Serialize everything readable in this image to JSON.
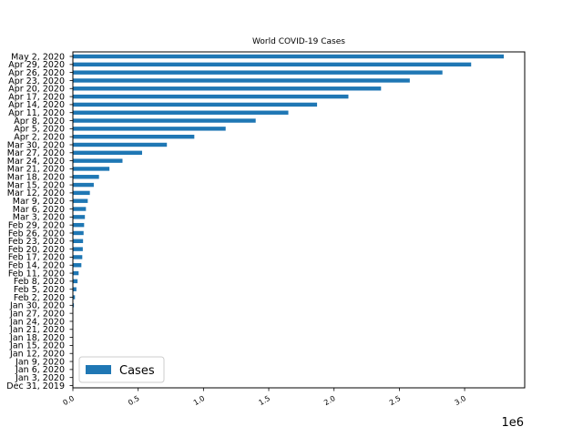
{
  "chart_data": {
    "type": "bar",
    "orientation": "horizontal",
    "title": "World COVID-19 Cases",
    "xlabel": "",
    "ylabel": "",
    "x_offset_label": "1e6",
    "xlim": [
      0,
      3460000
    ],
    "x_ticks": [
      0,
      500000,
      1000000,
      1500000,
      2000000,
      2500000,
      3000000
    ],
    "x_tick_labels": [
      "0.0",
      "0.5",
      "1.0",
      "1.5",
      "2.0",
      "2.5",
      "3.0"
    ],
    "categories": [
      "Dec 31, 2019",
      "Jan 3, 2020",
      "Jan 6, 2020",
      "Jan 9, 2020",
      "Jan 12, 2020",
      "Jan 15, 2020",
      "Jan 18, 2020",
      "Jan 21, 2020",
      "Jan 24, 2020",
      "Jan 27, 2020",
      "Jan 30, 2020",
      "Feb 2, 2020",
      "Feb 5, 2020",
      "Feb 8, 2020",
      "Feb 11, 2020",
      "Feb 14, 2020",
      "Feb 17, 2020",
      "Feb 20, 2020",
      "Feb 23, 2020",
      "Feb 26, 2020",
      "Feb 29, 2020",
      "Mar 3, 2020",
      "Mar 6, 2020",
      "Mar 9, 2020",
      "Mar 12, 2020",
      "Mar 15, 2020",
      "Mar 18, 2020",
      "Mar 21, 2020",
      "Mar 24, 2020",
      "Mar 27, 2020",
      "Mar 30, 2020",
      "Apr 2, 2020",
      "Apr 5, 2020",
      "Apr 8, 2020",
      "Apr 11, 2020",
      "Apr 14, 2020",
      "Apr 17, 2020",
      "Apr 20, 2020",
      "Apr 23, 2020",
      "Apr 26, 2020",
      "Apr 29, 2020",
      "May 2, 2020"
    ],
    "series": [
      {
        "name": "Cases",
        "color": "#1f77b4",
        "values": [
          27,
          44,
          59,
          59,
          41,
          41,
          75,
          314,
          844,
          2800,
          8000,
          16000,
          27000,
          36000,
          44000,
          65000,
          72000,
          76000,
          78000,
          82000,
          86000,
          92000,
          100000,
          114000,
          130000,
          160000,
          200000,
          280000,
          380000,
          530000,
          720000,
          930000,
          1170000,
          1400000,
          1650000,
          1870000,
          2110000,
          2360000,
          2580000,
          2830000,
          3050000,
          3300000
        ]
      }
    ],
    "legend": {
      "position": "lower-left",
      "entries": [
        "Cases"
      ]
    },
    "grid": false
  }
}
